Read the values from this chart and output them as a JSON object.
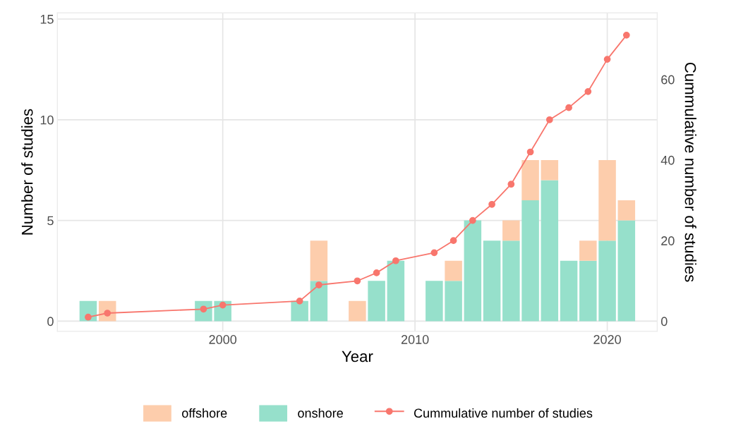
{
  "chart_data": {
    "type": "bar",
    "stacked": true,
    "xlabel": "Year",
    "ylabel": "Number of studies",
    "y2label": "Cummulative number of studies",
    "x": [
      1993,
      1994,
      1999,
      2000,
      2004,
      2005,
      2007,
      2008,
      2009,
      2011,
      2012,
      2013,
      2014,
      2015,
      2016,
      2017,
      2018,
      2019,
      2020,
      2021
    ],
    "series": [
      {
        "name": "onshore",
        "color": "#96e0cb",
        "values": [
          1,
          0,
          1,
          1,
          1,
          2,
          0,
          2,
          3,
          2,
          2,
          5,
          4,
          4,
          6,
          7,
          3,
          3,
          4,
          5
        ]
      },
      {
        "name": "offshore",
        "color": "#fdcdac",
        "values": [
          0,
          1,
          0,
          0,
          0,
          2,
          1,
          0,
          0,
          0,
          1,
          0,
          0,
          1,
          2,
          1,
          0,
          1,
          4,
          1
        ]
      },
      {
        "name": "Cummulative number of studies",
        "type": "line",
        "axis": "y2",
        "color": "#f8766d",
        "marker": "circle",
        "values": [
          1,
          2,
          3,
          4,
          5,
          9,
          10,
          12,
          15,
          17,
          20,
          25,
          29,
          34,
          42,
          50,
          53,
          57,
          65,
          71
        ]
      }
    ],
    "xlim": [
      1991.4,
      2022.6
    ],
    "xticks": [
      2000,
      2010,
      2020
    ],
    "ylim": [
      -0.5,
      15.3
    ],
    "yticks": [
      0,
      5,
      10,
      15
    ],
    "y2lim": [
      -2.5,
      76.5
    ],
    "y2ticks": [
      0,
      20,
      40,
      60
    ],
    "grid": true,
    "legend": "bottom"
  }
}
